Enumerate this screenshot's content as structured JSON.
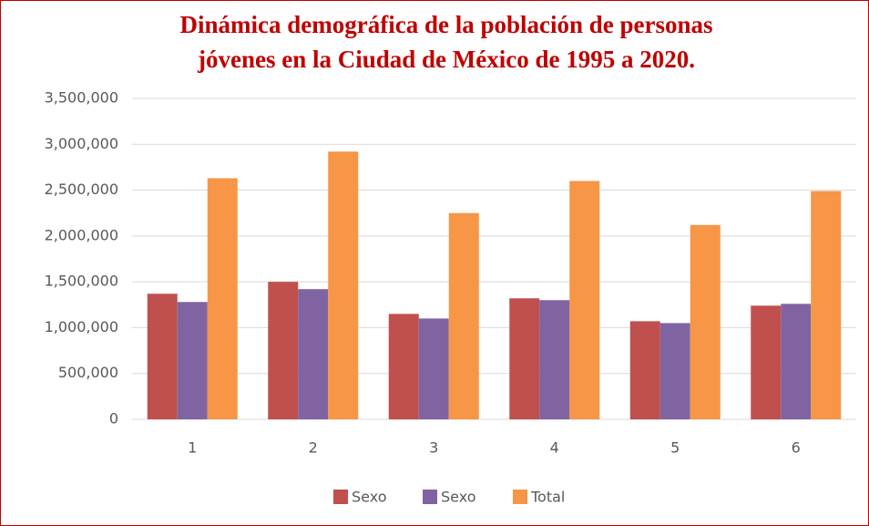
{
  "chart_data": {
    "type": "bar",
    "title": [
      "Dinámica demográfica de la población de personas",
      "jóvenes en la Ciudad de México de 1995 a 2020."
    ],
    "categories": [
      "1",
      "2",
      "3",
      "4",
      "5",
      "6"
    ],
    "series": [
      {
        "name": "Sexo",
        "color": "#c0504d",
        "values": [
          1370000,
          1500000,
          1150000,
          1320000,
          1070000,
          1240000
        ]
      },
      {
        "name": "Sexo",
        "color": "#8064a2",
        "values": [
          1280000,
          1420000,
          1100000,
          1300000,
          1050000,
          1260000
        ]
      },
      {
        "name": "Total",
        "color": "#f79646",
        "values": [
          2630000,
          2920000,
          2250000,
          2600000,
          2120000,
          2490000
        ]
      }
    ],
    "ylim": [
      0,
      3500000
    ],
    "yticks": [
      0,
      {
        "value": 500000,
        "label": "500,000"
      },
      {
        "value": 1000000,
        "label": "1,000,000"
      },
      {
        "value": 1500000,
        "label": "1,500,000"
      },
      {
        "value": 2000000,
        "label": "2,000,000"
      },
      {
        "value": 2500000,
        "label": "2,500,000"
      },
      {
        "value": 3000000,
        "label": "3,000,000"
      },
      {
        "value": 3500000,
        "label": "3,500,000"
      }
    ],
    "grid": true,
    "legend": "bottom"
  }
}
